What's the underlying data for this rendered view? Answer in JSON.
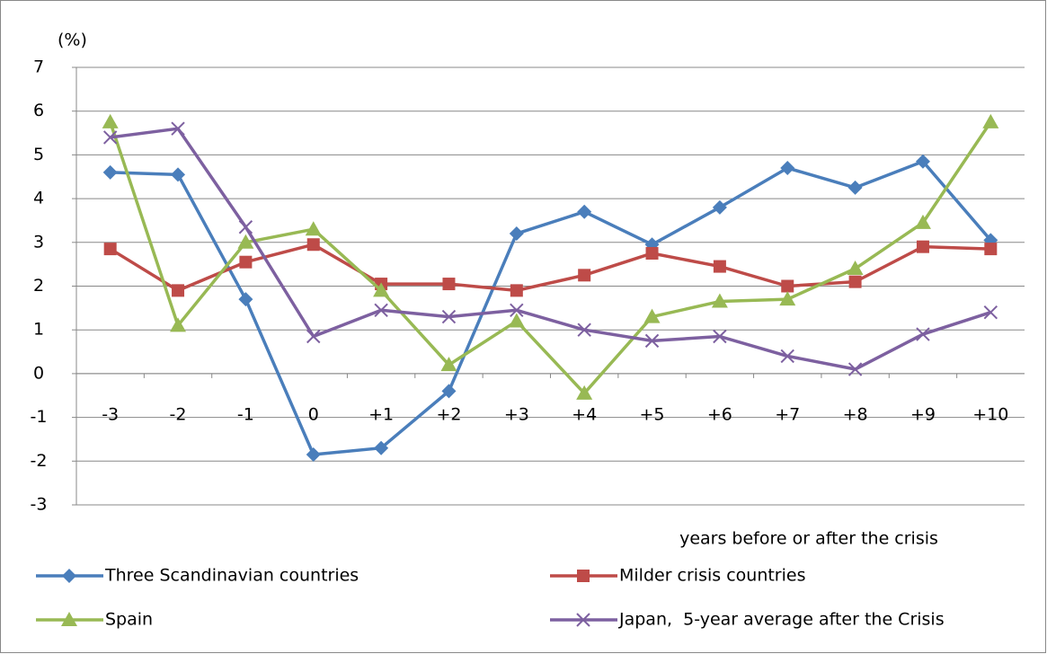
{
  "chart_data": {
    "type": "line",
    "y_label": "(%)",
    "x_label": "years before or after the crisis",
    "categories": [
      "-3",
      "-2",
      "-1",
      "0",
      "+1",
      "+2",
      "+3",
      "+4",
      "+5",
      "+6",
      "+7",
      "+8",
      "+9",
      "+10"
    ],
    "ylim": [
      -3,
      7
    ],
    "yticks": [
      -3,
      -2,
      -1,
      0,
      1,
      2,
      3,
      4,
      5,
      6,
      7
    ],
    "grid": true,
    "series": [
      {
        "name": "Three Scandinavian countries",
        "color": "#4a7ebb",
        "marker": "diamond",
        "values": [
          4.6,
          4.55,
          1.7,
          -1.85,
          -1.7,
          -0.4,
          3.2,
          3.7,
          2.95,
          3.8,
          4.7,
          4.25,
          4.85,
          3.05
        ]
      },
      {
        "name": "Milder crisis countries",
        "color": "#be4b48",
        "marker": "square",
        "values": [
          2.85,
          1.9,
          2.55,
          2.95,
          2.05,
          2.05,
          1.9,
          2.25,
          2.75,
          2.45,
          2.0,
          2.1,
          2.9,
          2.85
        ]
      },
      {
        "name": "Spain",
        "color": "#98b954",
        "marker": "triangle",
        "values": [
          5.75,
          1.1,
          3.0,
          3.3,
          1.9,
          0.2,
          1.2,
          -0.45,
          1.3,
          1.65,
          1.7,
          2.4,
          3.45,
          5.75
        ]
      },
      {
        "name": "Japan,  5-year average after the Crisis",
        "color": "#7d60a0",
        "marker": "x",
        "values": [
          5.4,
          5.6,
          3.35,
          0.85,
          1.45,
          1.3,
          1.45,
          1.0,
          0.75,
          0.85,
          0.4,
          0.1,
          0.9,
          1.4
        ]
      }
    ]
  }
}
